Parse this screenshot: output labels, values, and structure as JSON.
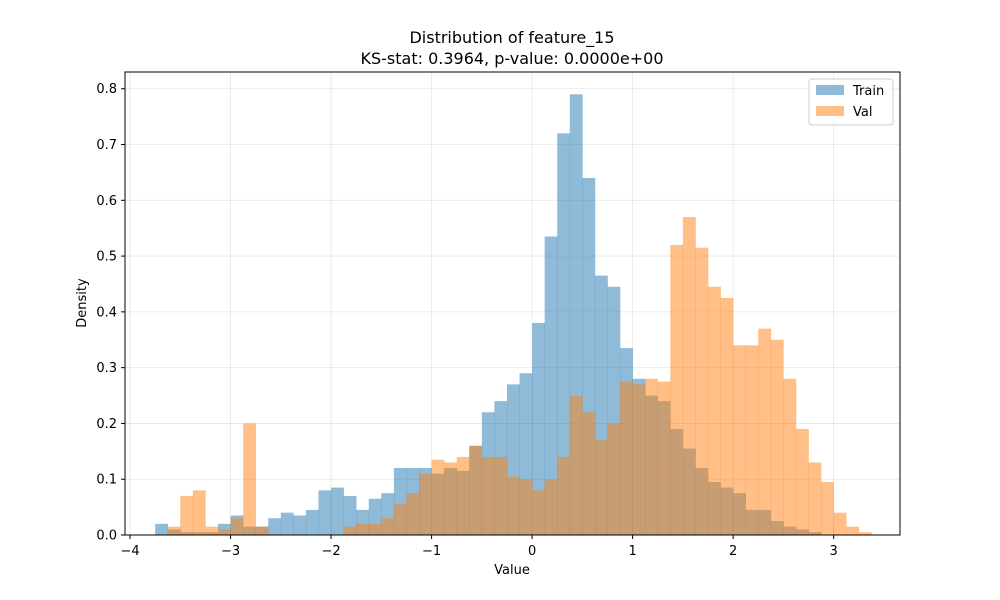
{
  "chart_data": {
    "type": "histogram",
    "title": "Distribution of feature_15",
    "subtitle": "KS-stat: 0.3964, p-value: 0.0000e+00",
    "xlabel": "Value",
    "ylabel": "Density",
    "xlim": [
      -4.05,
      3.66
    ],
    "ylim": [
      0,
      0.83
    ],
    "xticks": [
      -4,
      -3,
      -2,
      -1,
      0,
      1,
      2,
      3
    ],
    "yticks": [
      0.0,
      0.1,
      0.2,
      0.3,
      0.4,
      0.5,
      0.6,
      0.7,
      0.8
    ],
    "grid": true,
    "legend_position": "top-right",
    "series": [
      {
        "name": "Train",
        "color": "#1f77b4",
        "alpha": 0.5,
        "bin_start": -3.75,
        "bin_width": 0.125,
        "values": [
          0.02,
          0.01,
          0.005,
          0.005,
          0.005,
          0.02,
          0.035,
          0.015,
          0.015,
          0.03,
          0.04,
          0.035,
          0.045,
          0.08,
          0.085,
          0.07,
          0.045,
          0.065,
          0.075,
          0.12,
          0.12,
          0.12,
          0.11,
          0.12,
          0.115,
          0.16,
          0.22,
          0.24,
          0.27,
          0.29,
          0.38,
          0.535,
          0.72,
          0.79,
          0.64,
          0.465,
          0.445,
          0.335,
          0.28,
          0.25,
          0.24,
          0.19,
          0.155,
          0.12,
          0.095,
          0.085,
          0.075,
          0.045,
          0.045,
          0.025,
          0.015,
          0.01,
          0.005,
          0.0,
          0.0,
          0.0,
          0.0
        ]
      },
      {
        "name": "Val",
        "color": "#ff7f0e",
        "alpha": 0.5,
        "bin_start": -3.75,
        "bin_width": 0.125,
        "values": [
          0.0,
          0.015,
          0.07,
          0.08,
          0.015,
          0.01,
          0.03,
          0.2,
          0.015,
          0.0,
          0.0,
          0.0,
          0.0,
          0.0,
          0.0,
          0.015,
          0.02,
          0.02,
          0.03,
          0.055,
          0.075,
          0.11,
          0.135,
          0.13,
          0.14,
          0.16,
          0.14,
          0.14,
          0.105,
          0.1,
          0.08,
          0.1,
          0.14,
          0.25,
          0.22,
          0.17,
          0.2,
          0.275,
          0.27,
          0.28,
          0.275,
          0.52,
          0.57,
          0.515,
          0.445,
          0.425,
          0.34,
          0.34,
          0.37,
          0.35,
          0.28,
          0.19,
          0.13,
          0.095,
          0.04,
          0.015,
          0.005,
          0.0,
          0.0,
          0.0,
          0.0
        ]
      }
    ]
  }
}
